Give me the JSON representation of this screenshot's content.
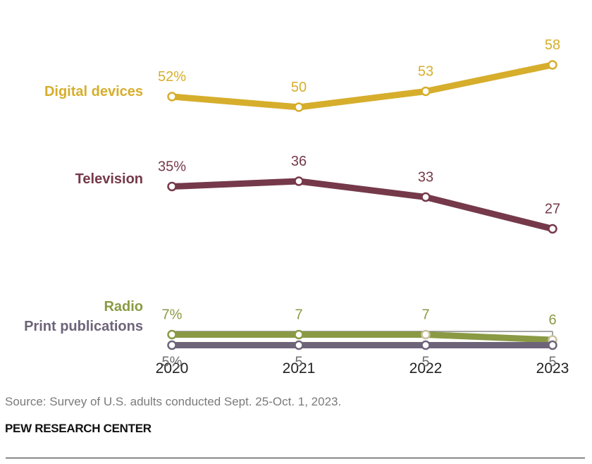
{
  "chart_data": {
    "type": "line",
    "x": [
      "2020",
      "2021",
      "2022",
      "2023"
    ],
    "series": [
      {
        "name": "Digital devices",
        "values": [
          52,
          50,
          53,
          58
        ],
        "labels": [
          "52%",
          "50",
          "53",
          "58"
        ],
        "color": "#D6AE2C"
      },
      {
        "name": "Television",
        "values": [
          35,
          36,
          33,
          27
        ],
        "labels": [
          "35%",
          "36",
          "33",
          "27"
        ],
        "color": "#75394A"
      },
      {
        "name": "Radio",
        "values": [
          7,
          7,
          7,
          6
        ],
        "labels": [
          "7%",
          "7",
          "7",
          "6"
        ],
        "color": "#8A9A44"
      },
      {
        "name": "Print publications",
        "values": [
          5,
          5,
          5,
          5
        ],
        "labels": [
          "5%",
          "5",
          "5",
          "5"
        ],
        "color": "#6E6479"
      }
    ],
    "ylim": [
      5,
      58
    ],
    "grid": false
  },
  "source": "Source: Survey of U.S. adults conducted Sept. 25-Oct. 1, 2023.",
  "brand": "PEW RESEARCH CENTER"
}
